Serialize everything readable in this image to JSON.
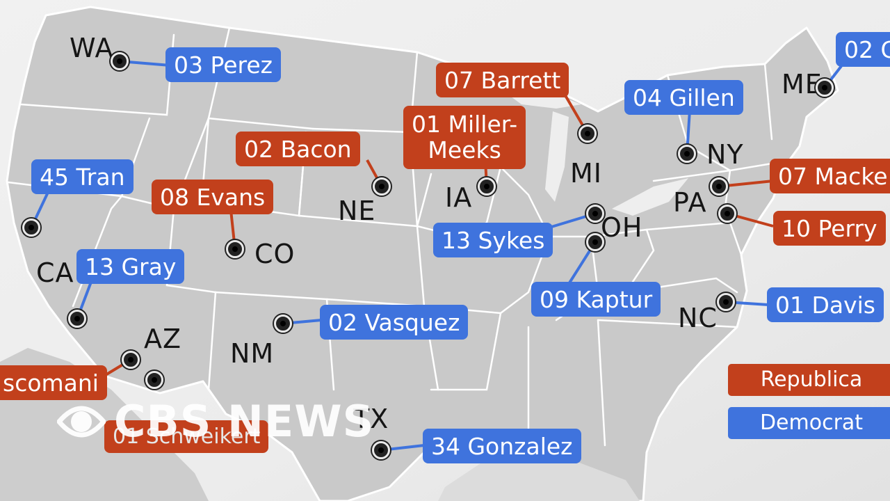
{
  "colors": {
    "republican": "#c2401c",
    "democrat": "#3f73dd",
    "land": "#c9c9c9",
    "border": "#ffffff",
    "background": "#eeeeee"
  },
  "state_labels": [
    {
      "id": "wa",
      "text": "WA"
    },
    {
      "id": "ca",
      "text": "CA"
    },
    {
      "id": "az",
      "text": "AZ"
    },
    {
      "id": "nm",
      "text": "NM"
    },
    {
      "id": "co",
      "text": "CO"
    },
    {
      "id": "ne",
      "text": "NE"
    },
    {
      "id": "ia",
      "text": "IA"
    },
    {
      "id": "mi",
      "text": "MI"
    },
    {
      "id": "oh",
      "text": "OH"
    },
    {
      "id": "pa",
      "text": "PA"
    },
    {
      "id": "ny",
      "text": "NY"
    },
    {
      "id": "me",
      "text": "ME"
    },
    {
      "id": "nc",
      "text": "NC"
    },
    {
      "id": "tx",
      "text": "TX"
    }
  ],
  "districts": [
    {
      "id": "wa-03",
      "label": "03 Perez",
      "party": "democrat"
    },
    {
      "id": "ca-45",
      "label": "45 Tran",
      "party": "democrat"
    },
    {
      "id": "ca-13",
      "label": "13 Gray",
      "party": "democrat"
    },
    {
      "id": "co-08",
      "label": "08 Evans",
      "party": "republican"
    },
    {
      "id": "ne-02",
      "label": "02 Bacon",
      "party": "republican"
    },
    {
      "id": "ia-01",
      "label": "01 Miller-\nMeeks",
      "party": "republican"
    },
    {
      "id": "mi-07",
      "label": "07 Barrett",
      "party": "republican"
    },
    {
      "id": "ny-04",
      "label": "04 Gillen",
      "party": "democrat"
    },
    {
      "id": "me-02",
      "label": "02 G",
      "party": "democrat"
    },
    {
      "id": "pa-07",
      "label": "07 Macke",
      "party": "republican"
    },
    {
      "id": "pa-10",
      "label": "10 Perry",
      "party": "republican"
    },
    {
      "id": "oh-13",
      "label": "13 Sykes",
      "party": "democrat"
    },
    {
      "id": "oh-09",
      "label": "09 Kaptur",
      "party": "democrat"
    },
    {
      "id": "nc-01",
      "label": "01 Davis",
      "party": "democrat"
    },
    {
      "id": "nm-02",
      "label": "02 Vasquez",
      "party": "democrat"
    },
    {
      "id": "az-06",
      "label": "scomani",
      "party": "republican"
    },
    {
      "id": "az-01",
      "label": "01 Schweikert",
      "party": "republican"
    },
    {
      "id": "tx-34",
      "label": "34 Gonzalez",
      "party": "democrat"
    }
  ],
  "legend": {
    "republican": "Republica",
    "democrat": "Democrat"
  },
  "watermark": {
    "text": "CBS NEWS",
    "logo_icon": "cbs-eye-icon"
  }
}
